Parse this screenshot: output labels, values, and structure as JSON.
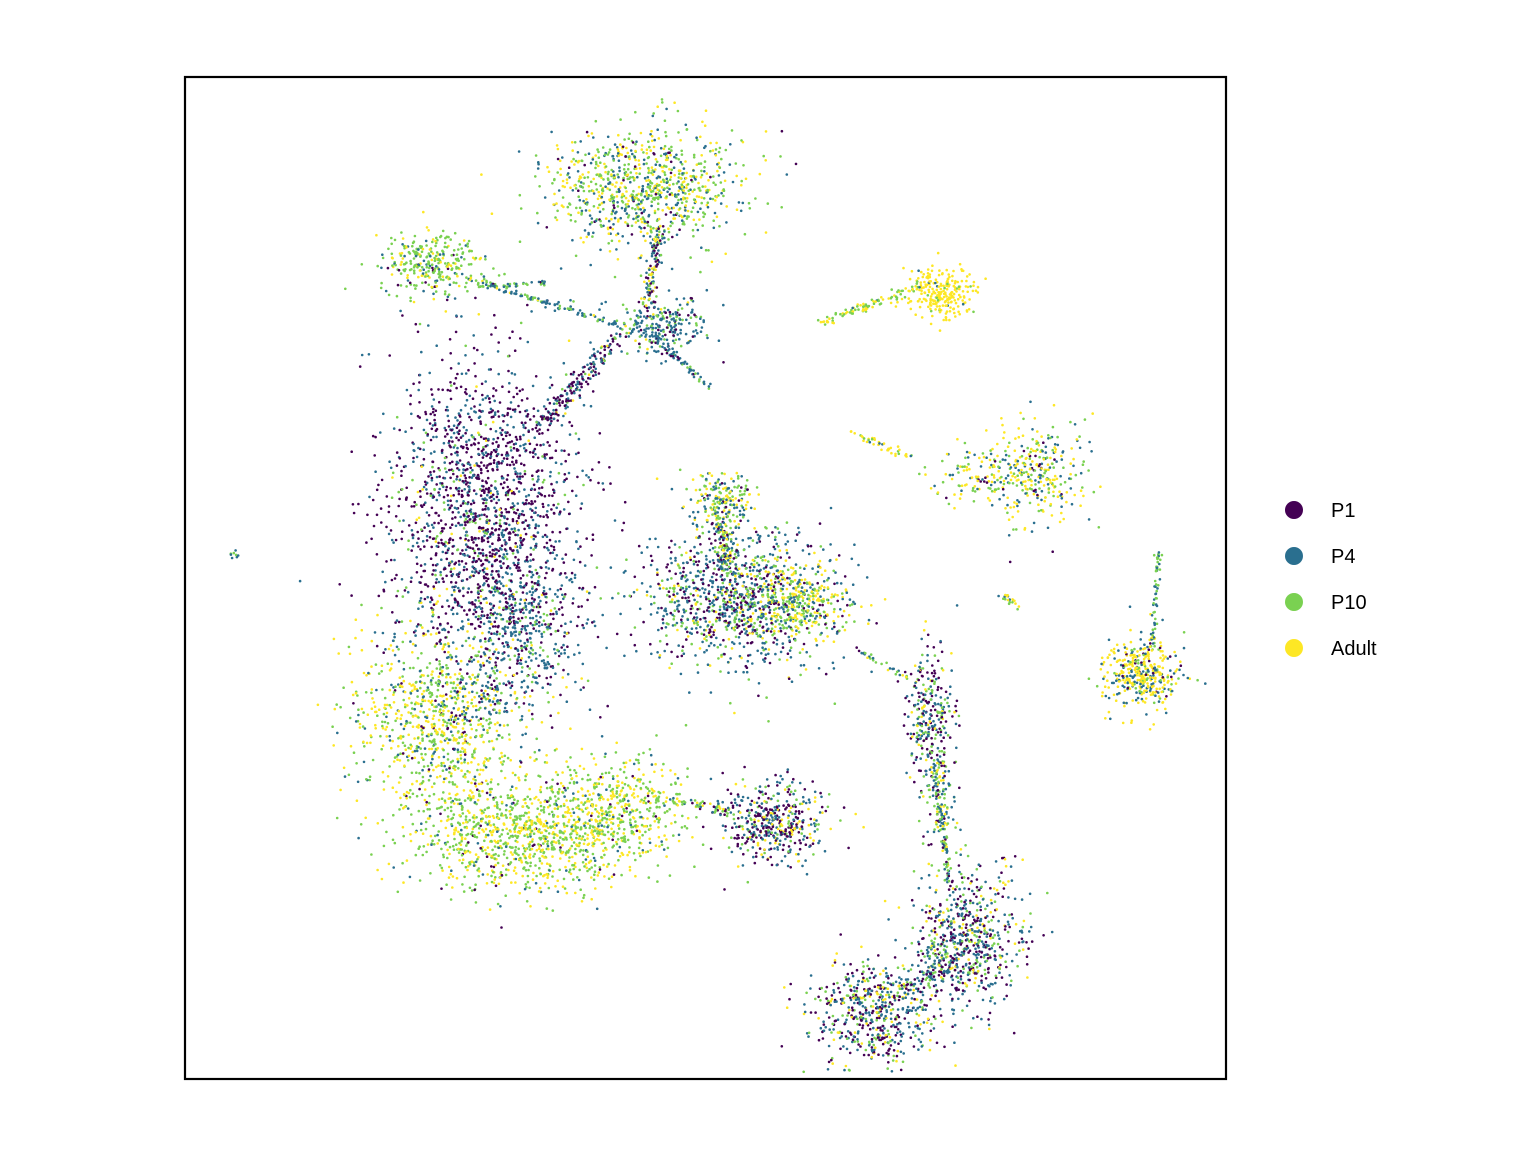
{
  "chart_data": {
    "type": "scatter",
    "title": "",
    "xlabel": "",
    "ylabel": "",
    "xlim": [
      0,
      100
    ],
    "ylim": [
      0,
      100
    ],
    "grid": false,
    "axes_ticks": false,
    "legend": {
      "placement": "right",
      "entries": [
        {
          "name": "P1",
          "color": "#440154"
        },
        {
          "name": "P4",
          "color": "#2a6f8f"
        },
        {
          "name": "P10",
          "color": "#7ad151"
        },
        {
          "name": "Adult",
          "color": "#fde725"
        }
      ]
    },
    "clusters": [
      {
        "cx": 44.2,
        "cy": 89.0,
        "sx": 4.5,
        "sy": 3.0,
        "n": 900,
        "mix": [
          0.05,
          0.25,
          0.4,
          0.3
        ]
      },
      {
        "cx": 23.7,
        "cy": 81.5,
        "sx": 2.4,
        "sy": 1.6,
        "n": 300,
        "mix": [
          0.05,
          0.1,
          0.65,
          0.2
        ]
      },
      {
        "cx": 46.0,
        "cy": 75.0,
        "sx": 2.2,
        "sy": 1.5,
        "n": 250,
        "mix": [
          0.15,
          0.65,
          0.15,
          0.05
        ]
      },
      {
        "cx": 28.5,
        "cy": 57.0,
        "sx": 4.5,
        "sy": 7.5,
        "n": 1700,
        "mix": [
          0.6,
          0.3,
          0.07,
          0.03
        ]
      },
      {
        "cx": 32.5,
        "cy": 45.0,
        "sx": 3.0,
        "sy": 4.5,
        "n": 500,
        "mix": [
          0.25,
          0.55,
          0.15,
          0.05
        ]
      },
      {
        "cx": 24.5,
        "cy": 36.0,
        "sx": 4.0,
        "sy": 4.5,
        "n": 900,
        "mix": [
          0.05,
          0.15,
          0.4,
          0.4
        ]
      },
      {
        "cx": 33.0,
        "cy": 24.5,
        "sx": 5.5,
        "sy": 3.0,
        "n": 1100,
        "mix": [
          0.02,
          0.05,
          0.5,
          0.43
        ]
      },
      {
        "cx": 42.0,
        "cy": 27.0,
        "sx": 3.0,
        "sy": 2.5,
        "n": 350,
        "mix": [
          0.02,
          0.08,
          0.5,
          0.4
        ]
      },
      {
        "cx": 51.5,
        "cy": 57.5,
        "sx": 1.6,
        "sy": 1.5,
        "n": 200,
        "mix": [
          0.05,
          0.3,
          0.35,
          0.3
        ]
      },
      {
        "cx": 53.0,
        "cy": 48.0,
        "sx": 4.5,
        "sy": 3.5,
        "n": 1100,
        "mix": [
          0.25,
          0.45,
          0.2,
          0.1
        ]
      },
      {
        "cx": 59.0,
        "cy": 47.5,
        "sx": 2.2,
        "sy": 1.8,
        "n": 300,
        "mix": [
          0.05,
          0.15,
          0.3,
          0.5
        ]
      },
      {
        "cx": 56.5,
        "cy": 25.5,
        "sx": 2.4,
        "sy": 2.0,
        "n": 450,
        "mix": [
          0.35,
          0.35,
          0.15,
          0.15
        ]
      },
      {
        "cx": 72.5,
        "cy": 78.5,
        "sx": 1.7,
        "sy": 1.2,
        "n": 250,
        "mix": [
          0.0,
          0.02,
          0.08,
          0.9
        ]
      },
      {
        "cx": 82.0,
        "cy": 60.5,
        "sx": 2.2,
        "sy": 2.5,
        "n": 280,
        "mix": [
          0.05,
          0.25,
          0.3,
          0.4
        ]
      },
      {
        "cx": 77.0,
        "cy": 60.0,
        "sx": 3.0,
        "sy": 1.5,
        "n": 130,
        "mix": [
          0.03,
          0.22,
          0.3,
          0.45
        ]
      },
      {
        "cx": 92.0,
        "cy": 40.5,
        "sx": 1.8,
        "sy": 1.7,
        "n": 400,
        "mix": [
          0.05,
          0.25,
          0.1,
          0.6
        ]
      },
      {
        "cx": 71.5,
        "cy": 36.0,
        "sx": 1.2,
        "sy": 3.5,
        "n": 300,
        "mix": [
          0.35,
          0.35,
          0.2,
          0.1
        ]
      },
      {
        "cx": 72.5,
        "cy": 28.0,
        "sx": 0.8,
        "sy": 2.5,
        "n": 100,
        "mix": [
          0.1,
          0.3,
          0.4,
          0.2
        ]
      },
      {
        "cx": 75.0,
        "cy": 14.0,
        "sx": 2.5,
        "sy": 3.5,
        "n": 650,
        "mix": [
          0.3,
          0.4,
          0.2,
          0.1
        ]
      },
      {
        "cx": 66.0,
        "cy": 6.5,
        "sx": 3.0,
        "sy": 2.5,
        "n": 550,
        "mix": [
          0.3,
          0.35,
          0.2,
          0.15
        ]
      },
      {
        "cx": 4.8,
        "cy": 52.5,
        "sx": 0.3,
        "sy": 0.2,
        "n": 8,
        "mix": [
          0.0,
          0.5,
          0.5,
          0.0
        ]
      }
    ],
    "trails": [
      {
        "x0": 27.0,
        "y0": 80.0,
        "x1": 42.5,
        "y1": 75.0,
        "n": 120,
        "w": 0.35,
        "mix": [
          0.05,
          0.6,
          0.3,
          0.05
        ]
      },
      {
        "x0": 28.0,
        "y0": 79.0,
        "x1": 34.5,
        "y1": 79.5,
        "n": 40,
        "w": 0.25,
        "mix": [
          0.0,
          0.3,
          0.7,
          0.0
        ]
      },
      {
        "x0": 45.5,
        "y0": 85.0,
        "x1": 44.5,
        "y1": 77.0,
        "n": 120,
        "w": 0.6,
        "mix": [
          0.2,
          0.4,
          0.2,
          0.2
        ]
      },
      {
        "x0": 45.0,
        "y0": 74.0,
        "x1": 50.5,
        "y1": 69.0,
        "n": 60,
        "w": 0.35,
        "mix": [
          0.1,
          0.7,
          0.2,
          0.0
        ]
      },
      {
        "x0": 41.5,
        "y0": 74.0,
        "x1": 34.0,
        "y1": 65.0,
        "n": 180,
        "w": 1.0,
        "mix": [
          0.5,
          0.4,
          0.05,
          0.05
        ]
      },
      {
        "x0": 51.5,
        "y0": 55.5,
        "x1": 52.0,
        "y1": 51.0,
        "n": 100,
        "w": 0.8,
        "mix": [
          0.1,
          0.4,
          0.3,
          0.2
        ]
      },
      {
        "x0": 46.0,
        "y0": 28.0,
        "x1": 53.5,
        "y1": 26.5,
        "n": 60,
        "w": 0.5,
        "mix": [
          0.1,
          0.2,
          0.5,
          0.2
        ]
      },
      {
        "x0": 61.0,
        "y0": 75.5,
        "x1": 70.5,
        "y1": 79.0,
        "n": 90,
        "w": 0.5,
        "mix": [
          0.0,
          0.05,
          0.55,
          0.4
        ]
      },
      {
        "x0": 64.0,
        "y0": 64.5,
        "x1": 70.0,
        "y1": 62.0,
        "n": 40,
        "w": 0.4,
        "mix": [
          0.0,
          0.1,
          0.2,
          0.7
        ]
      },
      {
        "x0": 93.5,
        "y0": 52.5,
        "x1": 93.0,
        "y1": 43.0,
        "n": 60,
        "w": 0.25,
        "mix": [
          0.0,
          0.3,
          0.7,
          0.0
        ]
      },
      {
        "x0": 72.0,
        "y0": 31.0,
        "x1": 73.5,
        "y1": 19.0,
        "n": 90,
        "w": 0.3,
        "mix": [
          0.2,
          0.4,
          0.3,
          0.1
        ]
      },
      {
        "x0": 74.0,
        "y0": 12.0,
        "x1": 68.5,
        "y1": 8.5,
        "n": 100,
        "w": 0.9,
        "mix": [
          0.3,
          0.4,
          0.2,
          0.1
        ]
      },
      {
        "x0": 64.5,
        "y0": 43.0,
        "x1": 69.5,
        "y1": 40.0,
        "n": 30,
        "w": 0.3,
        "mix": [
          0.1,
          0.3,
          0.4,
          0.2
        ]
      },
      {
        "x0": 78.5,
        "y0": 48.5,
        "x1": 80.0,
        "y1": 47.0,
        "n": 20,
        "w": 0.4,
        "mix": [
          0.0,
          0.2,
          0.4,
          0.4
        ]
      }
    ]
  }
}
